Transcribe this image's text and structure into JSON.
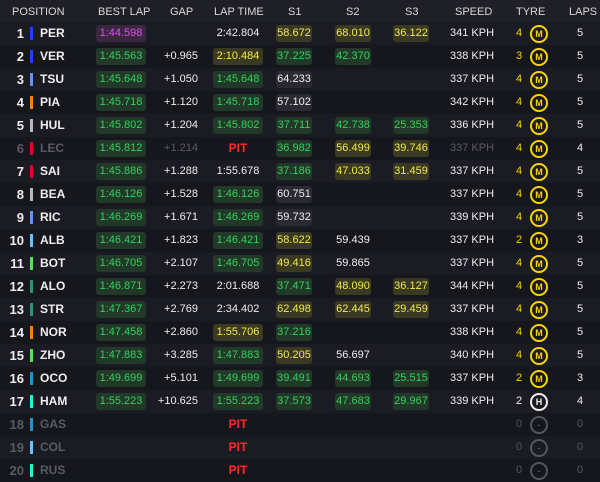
{
  "headers": {
    "position": "POSITION",
    "best_lap": "BEST LAP",
    "gap": "GAP",
    "lap_time": "LAP TIME",
    "s1": "S1",
    "s2": "S2",
    "s3": "S3",
    "speed": "SPEED",
    "tyre": "TYRE",
    "laps": "LAPS"
  },
  "rows": [
    {
      "pos": "1",
      "team": "#1e41ff",
      "drv": "PER",
      "best": "1:44.598",
      "bestc": "purple",
      "gap": "",
      "lap": "2:42.804",
      "lapc": "plain",
      "s1": "58.672",
      "s1c": "yellow",
      "s2": "68.010",
      "s2c": "yellow",
      "s3": "36.122",
      "s3c": "yellow",
      "speed": "341 KPH",
      "age": "4",
      "tyre": "M",
      "tyrec": "#f5d400",
      "laps": "5",
      "dim": false
    },
    {
      "pos": "2",
      "team": "#1e41ff",
      "drv": "VER",
      "best": "1:45.563",
      "bestc": "green",
      "gap": "+0.965",
      "lap": "2:10.484",
      "lapc": "yellow",
      "s1": "37.225",
      "s1c": "green",
      "s2": "42.370",
      "s2c": "green",
      "s3": "",
      "s3c": "none",
      "speed": "338 KPH",
      "age": "3",
      "tyre": "M",
      "tyrec": "#f5d400",
      "laps": "5",
      "dim": false
    },
    {
      "pos": "3",
      "team": "#6692ff",
      "drv": "TSU",
      "best": "1:45.648",
      "bestc": "green",
      "gap": "+1.050",
      "lap": "1:45.648",
      "lapc": "green",
      "s1": "64.233",
      "s1c": "white",
      "s2": "",
      "s2c": "none",
      "s3": "",
      "s3c": "none",
      "speed": "337 KPH",
      "age": "4",
      "tyre": "M",
      "tyrec": "#f5d400",
      "laps": "5",
      "dim": false
    },
    {
      "pos": "4",
      "team": "#ff8000",
      "drv": "PIA",
      "best": "1:45.718",
      "bestc": "green",
      "gap": "+1.120",
      "lap": "1:45.718",
      "lapc": "green",
      "s1": "57.102",
      "s1c": "white",
      "s2": "",
      "s2c": "none",
      "s3": "",
      "s3c": "none",
      "speed": "342 KPH",
      "age": "4",
      "tyre": "M",
      "tyrec": "#f5d400",
      "laps": "5",
      "dim": false
    },
    {
      "pos": "5",
      "team": "#b6babd",
      "drv": "HUL",
      "best": "1:45.802",
      "bestc": "green",
      "gap": "+1.204",
      "lap": "1:45.802",
      "lapc": "green",
      "s1": "37.711",
      "s1c": "green",
      "s2": "42.738",
      "s2c": "green",
      "s3": "25.353",
      "s3c": "green",
      "speed": "336 KPH",
      "age": "4",
      "tyre": "M",
      "tyrec": "#f5d400",
      "laps": "5",
      "dim": false
    },
    {
      "pos": "6",
      "team": "#e8002d",
      "drv": "LEC",
      "best": "1:45.812",
      "bestc": "green",
      "gap": "+1.214",
      "lap": "PIT",
      "lapc": "pit",
      "s1": "36.982",
      "s1c": "green",
      "s2": "56.499",
      "s2c": "yellow",
      "s3": "39.746",
      "s3c": "yellow",
      "speed": "337 KPH",
      "age": "4",
      "tyre": "M",
      "tyrec": "#f5d400",
      "laps": "4",
      "dim": true
    },
    {
      "pos": "7",
      "team": "#e8002d",
      "drv": "SAI",
      "best": "1:45.886",
      "bestc": "green",
      "gap": "+1.288",
      "lap": "1:55.678",
      "lapc": "plain",
      "s1": "37.186",
      "s1c": "green",
      "s2": "47.033",
      "s2c": "yellow",
      "s3": "31.459",
      "s3c": "yellow",
      "speed": "337 KPH",
      "age": "4",
      "tyre": "M",
      "tyrec": "#f5d400",
      "laps": "5",
      "dim": false
    },
    {
      "pos": "8",
      "team": "#b6babd",
      "drv": "BEA",
      "best": "1:46.126",
      "bestc": "green",
      "gap": "+1.528",
      "lap": "1:46.126",
      "lapc": "green",
      "s1": "60.751",
      "s1c": "white",
      "s2": "",
      "s2c": "none",
      "s3": "",
      "s3c": "none",
      "speed": "337 KPH",
      "age": "4",
      "tyre": "M",
      "tyrec": "#f5d400",
      "laps": "5",
      "dim": false
    },
    {
      "pos": "9",
      "team": "#6692ff",
      "drv": "RIC",
      "best": "1:46.269",
      "bestc": "green",
      "gap": "+1.671",
      "lap": "1:46.269",
      "lapc": "green",
      "s1": "59.732",
      "s1c": "white",
      "s2": "",
      "s2c": "none",
      "s3": "",
      "s3c": "none",
      "speed": "339 KPH",
      "age": "4",
      "tyre": "M",
      "tyrec": "#f5d400",
      "laps": "5",
      "dim": false
    },
    {
      "pos": "10",
      "team": "#64c4ff",
      "drv": "ALB",
      "best": "1:46.421",
      "bestc": "green",
      "gap": "+1.823",
      "lap": "1:46.421",
      "lapc": "green",
      "s1": "58.622",
      "s1c": "yellow",
      "s2": "59.439",
      "s2c": "plain",
      "s3": "",
      "s3c": "none",
      "speed": "337 KPH",
      "age": "2",
      "tyre": "M",
      "tyrec": "#f5d400",
      "laps": "3",
      "dim": false
    },
    {
      "pos": "11",
      "team": "#52e252",
      "drv": "BOT",
      "best": "1:46.705",
      "bestc": "green",
      "gap": "+2.107",
      "lap": "1:46.705",
      "lapc": "green",
      "s1": "49.416",
      "s1c": "yellow",
      "s2": "59.865",
      "s2c": "plain",
      "s3": "",
      "s3c": "none",
      "speed": "337 KPH",
      "age": "4",
      "tyre": "M",
      "tyrec": "#f5d400",
      "laps": "5",
      "dim": false
    },
    {
      "pos": "12",
      "team": "#229971",
      "drv": "ALO",
      "best": "1:46.871",
      "bestc": "green",
      "gap": "+2.273",
      "lap": "2:01.688",
      "lapc": "plain",
      "s1": "37.471",
      "s1c": "green",
      "s2": "48.090",
      "s2c": "yellow",
      "s3": "36.127",
      "s3c": "yellow",
      "speed": "344 KPH",
      "age": "4",
      "tyre": "M",
      "tyrec": "#f5d400",
      "laps": "5",
      "dim": false
    },
    {
      "pos": "13",
      "team": "#229971",
      "drv": "STR",
      "best": "1:47.367",
      "bestc": "green",
      "gap": "+2.769",
      "lap": "2:34.402",
      "lapc": "plain",
      "s1": "62.498",
      "s1c": "yellow",
      "s2": "62.445",
      "s2c": "yellow",
      "s3": "29.459",
      "s3c": "yellow",
      "speed": "337 KPH",
      "age": "4",
      "tyre": "M",
      "tyrec": "#f5d400",
      "laps": "5",
      "dim": false
    },
    {
      "pos": "14",
      "team": "#ff8000",
      "drv": "NOR",
      "best": "1:47.458",
      "bestc": "green",
      "gap": "+2.860",
      "lap": "1:55.706",
      "lapc": "yellow",
      "s1": "37.216",
      "s1c": "green",
      "s2": "",
      "s2c": "none",
      "s3": "",
      "s3c": "none",
      "speed": "338 KPH",
      "age": "4",
      "tyre": "M",
      "tyrec": "#f5d400",
      "laps": "5",
      "dim": false
    },
    {
      "pos": "15",
      "team": "#52e252",
      "drv": "ZHO",
      "best": "1:47.883",
      "bestc": "green",
      "gap": "+3.285",
      "lap": "1:47.883",
      "lapc": "green",
      "s1": "50.205",
      "s1c": "yellow",
      "s2": "56.697",
      "s2c": "plain",
      "s3": "",
      "s3c": "none",
      "speed": "340 KPH",
      "age": "4",
      "tyre": "M",
      "tyrec": "#f5d400",
      "laps": "5",
      "dim": false
    },
    {
      "pos": "16",
      "team": "#2293d1",
      "drv": "OCO",
      "best": "1:49.699",
      "bestc": "green",
      "gap": "+5.101",
      "lap": "1:49.699",
      "lapc": "green",
      "s1": "39.491",
      "s1c": "green",
      "s2": "44.693",
      "s2c": "green",
      "s3": "25.515",
      "s3c": "green",
      "speed": "337 KPH",
      "age": "2",
      "tyre": "M",
      "tyrec": "#f5d400",
      "laps": "3",
      "dim": false
    },
    {
      "pos": "17",
      "team": "#27f4d2",
      "drv": "HAM",
      "best": "1:55.223",
      "bestc": "green",
      "gap": "+10.625",
      "lap": "1:55.223",
      "lapc": "green",
      "s1": "37.573",
      "s1c": "green",
      "s2": "47.683",
      "s2c": "green",
      "s3": "29.967",
      "s3c": "green",
      "speed": "339 KPH",
      "age": "2",
      "tyre": "H",
      "tyrec": "#eeeeee",
      "laps": "4",
      "dim": false
    },
    {
      "pos": "18",
      "team": "#2293d1",
      "drv": "GAS",
      "best": "",
      "bestc": "none",
      "gap": "",
      "lap": "PIT",
      "lapc": "pit",
      "s1": "",
      "s1c": "none",
      "s2": "",
      "s2c": "none",
      "s3": "",
      "s3c": "none",
      "speed": "",
      "age": "0",
      "tyre": "-",
      "tyrec": "#555560",
      "laps": "0",
      "dim": true
    },
    {
      "pos": "19",
      "team": "#64c4ff",
      "drv": "COL",
      "best": "",
      "bestc": "none",
      "gap": "",
      "lap": "PIT",
      "lapc": "pit",
      "s1": "",
      "s1c": "none",
      "s2": "",
      "s2c": "none",
      "s3": "",
      "s3c": "none",
      "speed": "",
      "age": "0",
      "tyre": "-",
      "tyrec": "#555560",
      "laps": "0",
      "dim": true
    },
    {
      "pos": "20",
      "team": "#27f4d2",
      "drv": "RUS",
      "best": "",
      "bestc": "none",
      "gap": "",
      "lap": "PIT",
      "lapc": "pit",
      "s1": "",
      "s1c": "none",
      "s2": "",
      "s2c": "none",
      "s3": "",
      "s3c": "none",
      "speed": "",
      "age": "0",
      "tyre": "-",
      "tyrec": "#555560",
      "laps": "0",
      "dim": true
    }
  ]
}
